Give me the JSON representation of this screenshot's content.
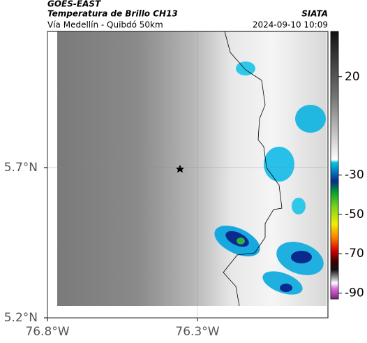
{
  "header": {
    "source": "GOES-EAST",
    "product": "Temperatura de Brillo CH13",
    "region": "Vía Medellín - Quibdó 50km",
    "agency": "SIATA",
    "timestamp": "2024-09-10 10:09"
  },
  "map": {
    "xlim": [
      -76.8,
      -75.865
    ],
    "ylim": [
      5.2,
      6.153
    ],
    "xticks": [
      {
        "value": -76.8,
        "label": "76.8°W"
      },
      {
        "value": -76.3,
        "label": "76.3°W"
      }
    ],
    "yticks": [
      {
        "value": 5.2,
        "label": "5.2°N"
      },
      {
        "value": 5.7,
        "label": "5.7°N"
      }
    ],
    "grid": true
  },
  "colorbar": {
    "lim": [
      43,
      -93
    ],
    "ticks": [
      20,
      -30,
      -50,
      -70,
      -90
    ]
  }
}
